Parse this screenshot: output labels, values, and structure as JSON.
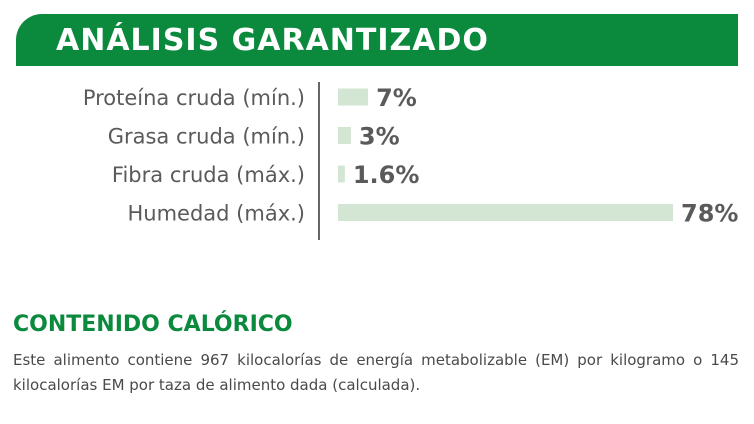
{
  "header": {
    "title": "ANÁLISIS GARANTIZADO"
  },
  "chart_data": {
    "type": "bar",
    "orientation": "horizontal",
    "categories": [
      "Proteína cruda (mín.)",
      "Grasa cruda (mín.)",
      "Fibra cruda (máx.)",
      "Humedad (máx.)"
    ],
    "values": [
      7,
      3,
      1.6,
      78
    ],
    "data_labels": [
      "7%",
      "3%",
      "1.6%",
      "78%"
    ],
    "xlim": [
      0,
      78
    ],
    "grid": false,
    "legend": "none",
    "bar_color": "#d3e6d3",
    "label_color": "#5a5a5a"
  },
  "caloric": {
    "title": "CONTENIDO CALÓRICO",
    "text": "Este alimento contiene 967 kilocalorías de energía metabolizable (EM) por kilogramo o 145 kilocalorías EM por taza de alimento dada (calculada)."
  },
  "colors": {
    "brand_green": "#0b8a3e",
    "text_gray": "#4a4a4a"
  }
}
